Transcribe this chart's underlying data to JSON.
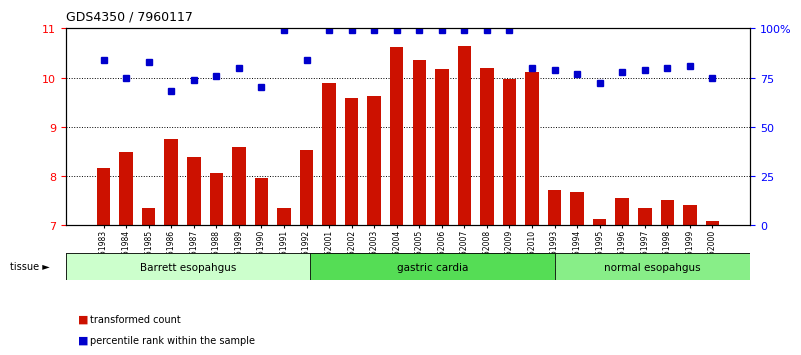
{
  "title": "GDS4350 / 7960117",
  "samples": [
    "GSM851983",
    "GSM851984",
    "GSM851985",
    "GSM851986",
    "GSM851987",
    "GSM851988",
    "GSM851989",
    "GSM851990",
    "GSM851991",
    "GSM851992",
    "GSM852001",
    "GSM852002",
    "GSM852003",
    "GSM852004",
    "GSM852005",
    "GSM852006",
    "GSM852007",
    "GSM852008",
    "GSM852009",
    "GSM852010",
    "GSM851993",
    "GSM851994",
    "GSM851995",
    "GSM851996",
    "GSM851997",
    "GSM851998",
    "GSM851999",
    "GSM852000"
  ],
  "red_values": [
    8.15,
    8.48,
    7.35,
    8.75,
    8.38,
    8.05,
    8.58,
    7.95,
    7.35,
    8.52,
    9.88,
    9.58,
    9.62,
    10.62,
    10.35,
    10.18,
    10.65,
    10.2,
    9.98,
    10.12,
    7.72,
    7.68,
    7.12,
    7.55,
    7.35,
    7.5,
    7.4,
    7.08
  ],
  "blue_values": [
    84,
    75,
    83,
    68,
    74,
    76,
    80,
    70,
    99,
    84,
    99,
    99,
    99,
    99,
    99,
    99,
    99,
    99,
    99,
    80,
    79,
    77,
    72,
    78,
    79,
    80,
    81,
    75
  ],
  "groups": [
    {
      "label": "Barrett esopahgus",
      "start": 0,
      "end": 10,
      "color": "#ccffcc"
    },
    {
      "label": "gastric cardia",
      "start": 10,
      "end": 20,
      "color": "#55dd55"
    },
    {
      "label": "normal esopahgus",
      "start": 20,
      "end": 28,
      "color": "#88ee88"
    }
  ],
  "ylim_left": [
    7,
    11
  ],
  "ylim_right": [
    0,
    100
  ],
  "yticks_left": [
    7,
    8,
    9,
    10,
    11
  ],
  "yticks_right": [
    0,
    25,
    50,
    75,
    100
  ],
  "ytick_labels_right": [
    "0",
    "25",
    "50",
    "75",
    "100%"
  ],
  "bar_color": "#cc1100",
  "dot_color": "#0000cc",
  "bar_width": 0.6,
  "title_fontsize": 9
}
